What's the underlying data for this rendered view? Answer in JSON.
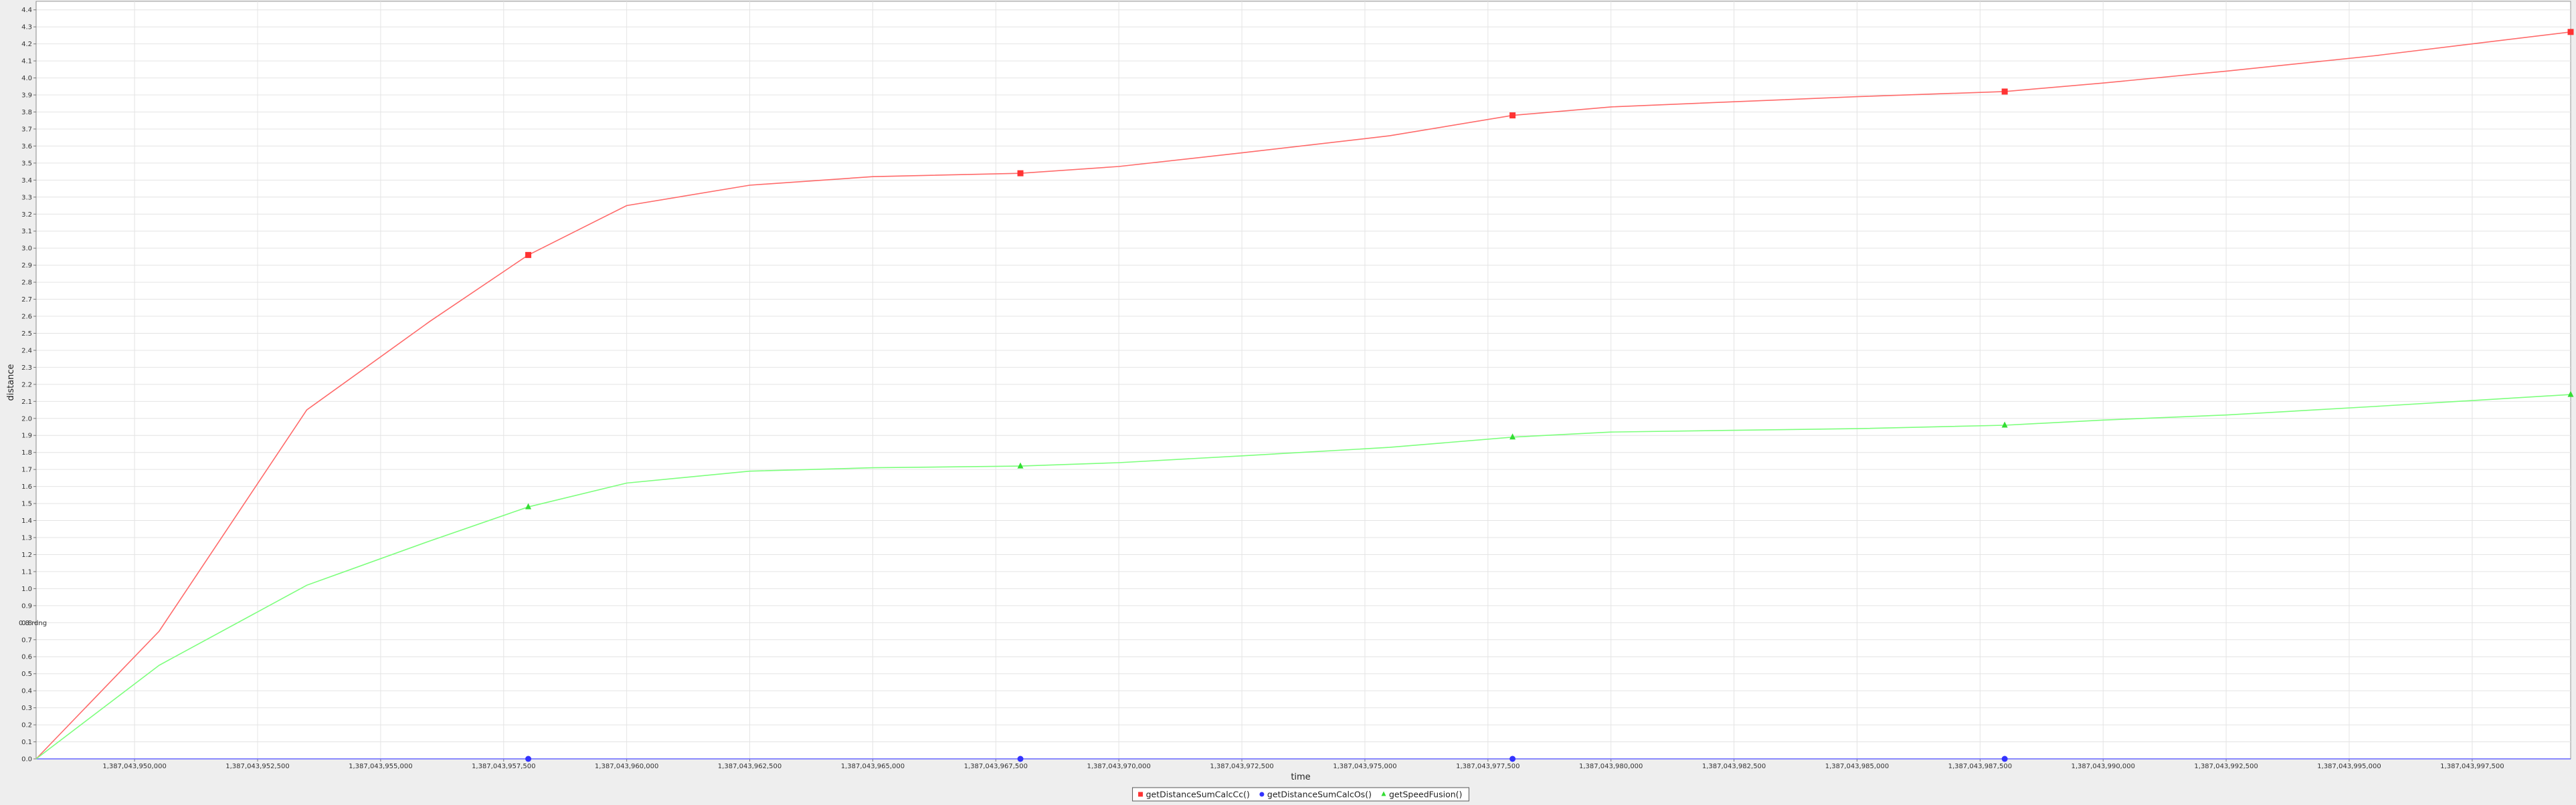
{
  "chart_data": {
    "type": "line",
    "title": "",
    "xlabel": "time",
    "ylabel": "distance",
    "xlim": [
      1387043948000,
      1387043999500
    ],
    "ylim": [
      0.0,
      4.45
    ],
    "grid": true,
    "legend_position": "bottom-center",
    "x_tick_labels": [
      "1,387,043,950,000",
      "1,387,043,952,500",
      "1,387,043,955,000",
      "1,387,043,957,500",
      "1,387,043,960,000",
      "1,387,043,962,500",
      "1,387,043,965,000",
      "1,387,043,967,500",
      "1,387,043,970,000",
      "1,387,043,972,500",
      "1,387,043,975,000",
      "1,387,043,977,500",
      "1,387,043,980,000",
      "1,387,043,982,500",
      "1,387,043,985,000",
      "1,387,043,987,500",
      "1,387,043,990,000",
      "1,387,043,992,500",
      "1,387,043,995,000",
      "1,387,043,997,500"
    ],
    "x_tick_values": [
      1387043950000,
      1387043952500,
      1387043955000,
      1387043957500,
      1387043960000,
      1387043962500,
      1387043965000,
      1387043967500,
      1387043970000,
      1387043972500,
      1387043975000,
      1387043977500,
      1387043980000,
      1387043982500,
      1387043985000,
      1387043987500,
      1387043990000,
      1387043992500,
      1387043995000,
      1387043997500
    ],
    "y_tick_labels": [
      "0.0",
      "0.1",
      "0.2",
      "0.3",
      "0.4",
      "0.5",
      "0.6",
      "0.7",
      "0.8",
      "0.9",
      "1.0",
      "1.1",
      "1.2",
      "1.3",
      "1.4",
      "1.5",
      "1.6",
      "1.7",
      "1.8",
      "1.9",
      "2.0",
      "2.1",
      "2.2",
      "2.3",
      "2.4",
      "2.5",
      "2.6",
      "2.7",
      "2.8",
      "2.9",
      "3.0",
      "3.1",
      "3.2",
      "3.3",
      "3.4",
      "3.5",
      "3.6",
      "3.7",
      "3.8",
      "3.9",
      "4.0",
      "4.1",
      "4.2",
      "4.3",
      "4.4"
    ],
    "annotations": [
      {
        "text": "0.8 rdng",
        "x": 1387043948000,
        "y": 0.8
      }
    ],
    "series": [
      {
        "name": "getDistanceSumCalcCc()",
        "color": "#ff6a6a",
        "marker_color": "#ff3333",
        "marker": "square",
        "x": [
          1387043948000,
          1387043950500,
          1387043953500,
          1387043956000,
          1387043958000,
          1387043960000,
          1387043962500,
          1387043965000,
          1387043968000,
          1387043970000,
          1387043972500,
          1387043975500,
          1387043978000,
          1387043980000,
          1387043982500,
          1387043985000,
          1387043988000,
          1387043990000,
          1387043992500,
          1387043995500,
          1387043999500
        ],
        "y": [
          0.0,
          0.75,
          2.05,
          2.57,
          2.96,
          3.25,
          3.37,
          3.42,
          3.44,
          3.48,
          3.56,
          3.66,
          3.78,
          3.83,
          3.86,
          3.89,
          3.92,
          3.97,
          4.04,
          4.13,
          4.27
        ],
        "marker_x": [
          1387043958000,
          1387043968000,
          1387043978000,
          1387043988000,
          1387043999500
        ],
        "marker_y": [
          2.96,
          3.44,
          3.78,
          3.92,
          4.27
        ]
      },
      {
        "name": "getDistanceSumCalcOs()",
        "color": "#6666ff",
        "marker_color": "#3333ff",
        "marker": "circle",
        "x": [
          1387043948000,
          1387043958000,
          1387043968000,
          1387043978000,
          1387043988000,
          1387043999500
        ],
        "y": [
          0.0,
          0.0,
          0.0,
          0.0,
          0.0,
          0.0
        ],
        "marker_x": [
          1387043958000,
          1387043968000,
          1387043978000,
          1387043988000
        ],
        "marker_y": [
          0.0,
          0.0,
          0.0,
          0.0
        ]
      },
      {
        "name": "getSpeedFusion()",
        "color": "#7dff7d",
        "marker_color": "#33dd33",
        "marker": "triangle",
        "x": [
          1387043948000,
          1387043950500,
          1387043953500,
          1387043956000,
          1387043958000,
          1387043960000,
          1387043962500,
          1387043965000,
          1387043968000,
          1387043970000,
          1387043972500,
          1387043975500,
          1387043978000,
          1387043980000,
          1387043982500,
          1387043985000,
          1387043988000,
          1387043990000,
          1387043992500,
          1387043995500,
          1387043999500
        ],
        "y": [
          0.0,
          0.55,
          1.02,
          1.28,
          1.48,
          1.62,
          1.69,
          1.71,
          1.72,
          1.74,
          1.78,
          1.83,
          1.89,
          1.92,
          1.93,
          1.94,
          1.96,
          1.99,
          2.02,
          2.07,
          2.14
        ],
        "marker_x": [
          1387043958000,
          1387043968000,
          1387043978000,
          1387043988000,
          1387043999500
        ],
        "marker_y": [
          1.48,
          1.72,
          1.89,
          1.96,
          2.14
        ]
      }
    ]
  }
}
